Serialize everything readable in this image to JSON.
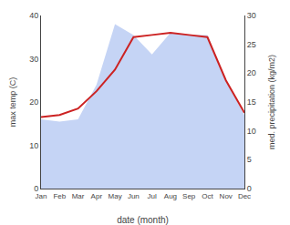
{
  "chart_data": {
    "type": "line",
    "categories": [
      "Jan",
      "Feb",
      "Mar",
      "Apr",
      "May",
      "Jun",
      "Jul",
      "Aug",
      "Sep",
      "Oct",
      "Nov",
      "Dec"
    ],
    "series": [
      {
        "type": "area",
        "color": "#c5d4f5",
        "values": [
          16.0,
          15.5,
          16.0,
          24.0,
          38.0,
          35.5,
          31.0,
          36.0,
          35.5,
          35.5,
          25.0,
          17.0
        ]
      },
      {
        "type": "line",
        "color": "#cc2222",
        "values": [
          16.5,
          17.0,
          18.5,
          22.5,
          27.5,
          35.0,
          35.5,
          36.0,
          35.5,
          35.0,
          25.0,
          17.5
        ]
      }
    ],
    "xlabel": "date (month)",
    "ylabel": "max temp (C)",
    "y2label": "med. precipitation (kg/m2)",
    "ylim": [
      0,
      40
    ],
    "yticks": [
      0,
      10,
      20,
      30,
      40
    ],
    "y2lim": [
      0,
      30
    ],
    "y2ticks": [
      0,
      5,
      10,
      15,
      20,
      25,
      30
    ],
    "grid": false
  }
}
